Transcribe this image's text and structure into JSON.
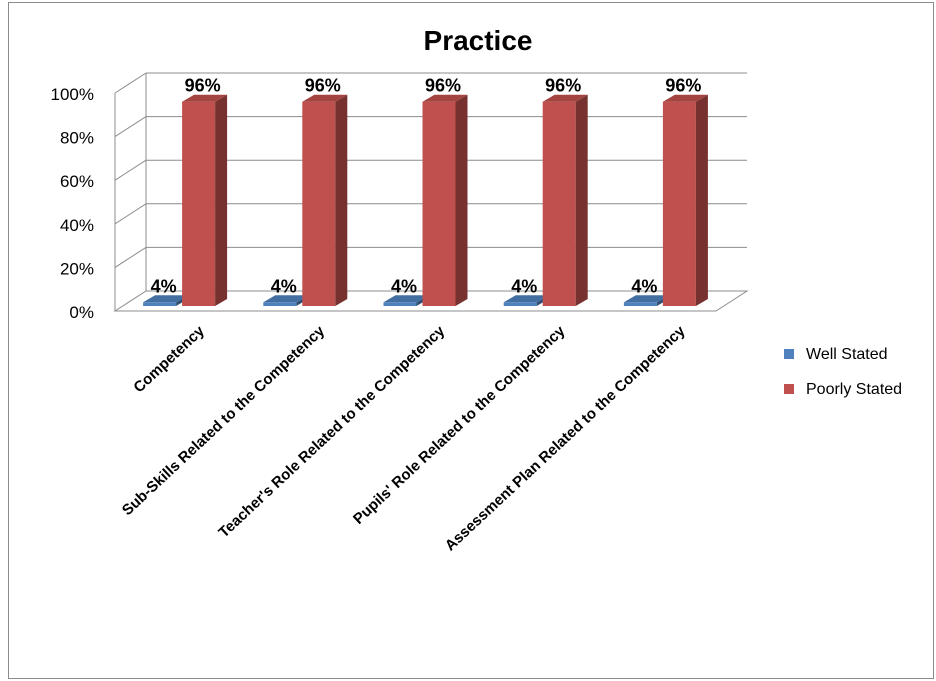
{
  "chart_data": {
    "type": "bar",
    "title": "Practice",
    "categories": [
      "Competency",
      "Sub-Skills Related to the Competency",
      "Teacher's Role Related to the Competency",
      "Pupils' Role Related to the Competency",
      "Assessment Plan Related to the Competency"
    ],
    "series": [
      {
        "name": "Well Stated",
        "values": [
          4,
          4,
          4,
          4,
          4
        ],
        "color": "#4F81BD"
      },
      {
        "name": "Poorly Stated",
        "values": [
          96,
          96,
          96,
          96,
          96
        ],
        "color": "#C0504D"
      }
    ],
    "data_labels": {
      "Well Stated": [
        "4%",
        "4%",
        "4%",
        "4%",
        "4%"
      ],
      "Poorly Stated": [
        "96%",
        "96%",
        "96%",
        "96%",
        "96%"
      ]
    },
    "y_ticks": [
      "0%",
      "20%",
      "40%",
      "60%",
      "80%",
      "100%"
    ],
    "ylim": [
      0,
      100
    ],
    "grid": true,
    "three_d": true,
    "legend_position": "right"
  }
}
